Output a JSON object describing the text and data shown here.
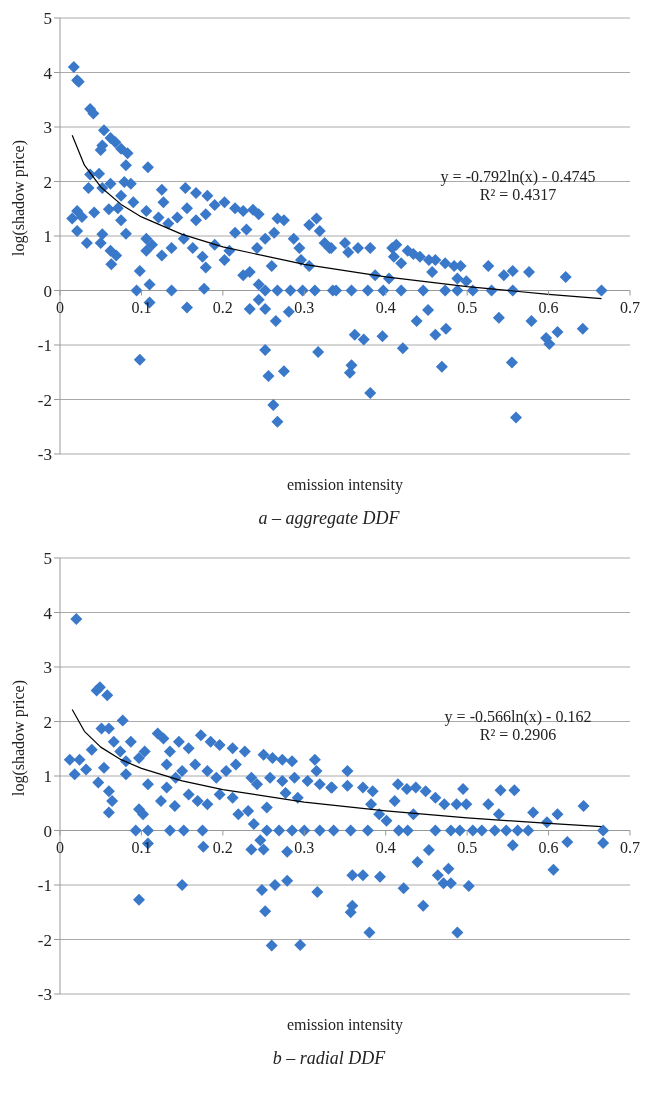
{
  "chart_data": [
    {
      "type": "scatter",
      "title": "a – aggregate DDF",
      "xlabel": "emission intensity",
      "ylabel": "log(shadow price)",
      "annotations": [
        "y = -0.792ln(x) - 0.4745",
        "R² = 0.4317"
      ],
      "xlim": [
        0,
        0.7
      ],
      "xticks": [
        0,
        0.1,
        0.2,
        0.3,
        0.4,
        0.5,
        0.6,
        0.7
      ],
      "ylim": [
        -3,
        5
      ],
      "yticks": [
        -3,
        -2,
        -1,
        0,
        1,
        2,
        3,
        4,
        5
      ],
      "grid": "y",
      "series": [
        {
          "type": "scatter",
          "marker": "diamond",
          "color": "#3a78c9",
          "x": [
            0.017,
            0.021,
            0.023,
            0.037,
            0.041,
            0.054,
            0.062,
            0.068,
            0.05,
            0.052,
            0.075,
            0.083,
            0.081,
            0.108,
            0.037,
            0.048,
            0.035,
            0.052,
            0.079,
            0.087,
            0.062,
            0.075,
            0.09,
            0.015,
            0.021,
            0.027,
            0.021,
            0.033,
            0.05,
            0.052,
            0.042,
            0.06,
            0.071,
            0.075,
            0.081,
            0.062,
            0.069,
            0.063,
            0.098,
            0.094,
            0.11,
            0.11,
            0.098,
            0.137,
            0.156,
            0.177,
            0.125,
            0.127,
            0.154,
            0.167,
            0.181,
            0.106,
            0.121,
            0.133,
            0.144,
            0.156,
            0.167,
            0.179,
            0.19,
            0.202,
            0.215,
            0.225,
            0.237,
            0.244,
            0.106,
            0.113,
            0.106,
            0.125,
            0.137,
            0.152,
            0.163,
            0.175,
            0.179,
            0.19,
            0.202,
            0.208,
            0.215,
            0.229,
            0.225,
            0.233,
            0.242,
            0.252,
            0.263,
            0.267,
            0.275,
            0.287,
            0.294,
            0.296,
            0.306,
            0.306,
            0.315,
            0.319,
            0.325,
            0.333,
            0.244,
            0.252,
            0.267,
            0.283,
            0.298,
            0.313,
            0.335,
            0.233,
            0.252,
            0.265,
            0.281,
            0.244,
            0.252,
            0.256,
            0.275,
            0.262,
            0.267,
            0.317,
            0.26,
            0.331,
            0.35,
            0.354,
            0.366,
            0.381,
            0.387,
            0.408,
            0.413,
            0.41,
            0.427,
            0.434,
            0.442,
            0.453,
            0.461,
            0.473,
            0.484,
            0.492,
            0.488,
            0.499,
            0.419,
            0.404,
            0.457,
            0.526,
            0.545,
            0.556,
            0.576,
            0.621,
            0.665,
            0.339,
            0.358,
            0.378,
            0.397,
            0.419,
            0.446,
            0.473,
            0.488,
            0.507,
            0.53,
            0.556,
            0.362,
            0.373,
            0.396,
            0.421,
            0.438,
            0.452,
            0.461,
            0.474,
            0.469,
            0.358,
            0.356,
            0.381,
            0.539,
            0.555,
            0.56,
            0.579,
            0.597,
            0.601,
            0.611,
            0.642
          ],
          "values": [
            4.1,
            3.86,
            3.83,
            3.33,
            3.25,
            2.94,
            2.8,
            2.72,
            2.58,
            2.66,
            2.6,
            2.52,
            2.3,
            2.26,
            2.13,
            2.14,
            1.88,
            1.88,
            1.99,
            1.96,
            1.96,
            1.74,
            1.62,
            1.32,
            1.46,
            1.35,
            1.09,
            0.87,
            0.87,
            1.03,
            1.43,
            1.49,
            1.51,
            1.29,
            1.04,
            0.73,
            0.64,
            0.48,
            0.36,
            0,
            0.11,
            -0.22,
            -1.27,
            0,
            -0.31,
            0.03,
            1.85,
            1.62,
            1.88,
            1.79,
            1.74,
            1.46,
            1.34,
            1.23,
            1.34,
            1.51,
            1.29,
            1.4,
            1.57,
            1.62,
            1.51,
            1.46,
            1.48,
            1.4,
            0.95,
            0.84,
            0.73,
            0.64,
            0.78,
            0.95,
            0.78,
            0.62,
            0.42,
            0.84,
            0.56,
            0.73,
            1.06,
            1.12,
            0.28,
            0.34,
            0.78,
            0.95,
            1.06,
            1.32,
            1.29,
            0.95,
            0.78,
            0.56,
            0.45,
            1.2,
            1.32,
            1.09,
            0.87,
            0.78,
            0.11,
            0,
            0,
            0,
            0,
            0,
            0,
            -0.34,
            -0.34,
            -0.56,
            -0.39,
            -0.17,
            -1.09,
            -1.57,
            -1.48,
            -2.1,
            -2.41,
            -1.13,
            0.45,
            0.78,
            0.87,
            0.7,
            0.78,
            0.78,
            0.28,
            0.78,
            0.84,
            0.62,
            0.73,
            0.67,
            0.62,
            0.56,
            0.56,
            0.5,
            0.45,
            0.45,
            0.22,
            0.17,
            0.5,
            0.22,
            0.34,
            0.45,
            0.28,
            0.36,
            0.34,
            0.25,
            0,
            0,
            0,
            0,
            0,
            0,
            0,
            0,
            0,
            0,
            0,
            0,
            -0.81,
            -0.9,
            -0.84,
            -1.06,
            -0.56,
            -0.36,
            -0.81,
            -0.7,
            -1.4,
            -1.37,
            -1.51,
            -1.88,
            -0.5,
            -1.32,
            -2.33,
            -0.56,
            -0.87,
            -0.98,
            -0.76,
            -0.7
          ]
        },
        {
          "type": "line",
          "color": "#000000",
          "x": [
            0.015,
            0.03,
            0.05,
            0.075,
            0.1,
            0.15,
            0.2,
            0.3,
            0.4,
            0.5,
            0.6,
            0.665
          ],
          "values": [
            2.85,
            2.3,
            1.9,
            1.58,
            1.35,
            1.03,
            0.8,
            0.48,
            0.25,
            0.07,
            -0.07,
            -0.15
          ]
        }
      ]
    },
    {
      "type": "scatter",
      "title": "b – radial DDF",
      "xlabel": "emission intensity",
      "ylabel": "log(shadow price)",
      "annotations": [
        "y = -0.566ln(x) - 0.162",
        "R² = 0.2906"
      ],
      "xlim": [
        0,
        0.7
      ],
      "xticks": [
        0,
        0.1,
        0.2,
        0.3,
        0.4,
        0.5,
        0.6,
        0.7
      ],
      "ylim": [
        -3,
        5
      ],
      "yticks": [
        -3,
        -2,
        -1,
        0,
        1,
        2,
        3,
        4,
        5
      ],
      "grid": "y",
      "series": [
        {
          "type": "scatter",
          "marker": "diamond",
          "color": "#3a78c9",
          "x": [
            0.02,
            0.045,
            0.049,
            0.058,
            0.077,
            0.051,
            0.06,
            0.012,
            0.018,
            0.024,
            0.032,
            0.039,
            0.047,
            0.054,
            0.06,
            0.064,
            0.06,
            0.066,
            0.074,
            0.081,
            0.087,
            0.081,
            0.097,
            0.104,
            0.108,
            0.124,
            0.097,
            0.102,
            0.093,
            0.108,
            0.108,
            0.097,
            0.135,
            0.152,
            0.175,
            0.141,
            0.15,
            0.176,
            0.12,
            0.127,
            0.135,
            0.146,
            0.158,
            0.173,
            0.185,
            0.196,
            0.212,
            0.227,
            0.131,
            0.142,
            0.131,
            0.158,
            0.169,
            0.181,
            0.15,
            0.166,
            0.181,
            0.192,
            0.204,
            0.216,
            0.196,
            0.212,
            0.219,
            0.231,
            0.235,
            0.25,
            0.261,
            0.273,
            0.285,
            0.313,
            0.315,
            0.242,
            0.258,
            0.273,
            0.288,
            0.304,
            0.319,
            0.333,
            0.277,
            0.292,
            0.254,
            0.238,
            0.254,
            0.269,
            0.285,
            0.3,
            0.319,
            0.336,
            0.235,
            0.25,
            0.246,
            0.279,
            0.248,
            0.264,
            0.279,
            0.252,
            0.316,
            0.26,
            0.295,
            0.334,
            0.353,
            0.353,
            0.372,
            0.384,
            0.382,
            0.392,
            0.401,
            0.415,
            0.426,
            0.437,
            0.411,
            0.434,
            0.449,
            0.461,
            0.472,
            0.487,
            0.495,
            0.499,
            0.526,
            0.539,
            0.541,
            0.558,
            0.581,
            0.598,
            0.611,
            0.643,
            0.667,
            0.667,
            0.357,
            0.378,
            0.416,
            0.427,
            0.461,
            0.48,
            0.491,
            0.507,
            0.518,
            0.534,
            0.548,
            0.562,
            0.575,
            0.556,
            0.623,
            0.606,
            0.453,
            0.439,
            0.464,
            0.477,
            0.471,
            0.48,
            0.502,
            0.359,
            0.372,
            0.393,
            0.422,
            0.446,
            0.359,
            0.357,
            0.38,
            0.488
          ],
          "values": [
            3.88,
            2.57,
            2.63,
            2.48,
            2.02,
            1.87,
            1.87,
            1.3,
            1.03,
            1.3,
            1.12,
            1.48,
            0.88,
            1.15,
            0.72,
            0.54,
            0.33,
            1.63,
            1.45,
            1.27,
            1.63,
            1.03,
            1.33,
            1.45,
            0.85,
            0.54,
            0.39,
            0.3,
            0,
            0,
            -0.24,
            -1.27,
            0,
            0,
            0,
            0.45,
            -1,
            -0.3,
            1.78,
            1.69,
            1.45,
            1.63,
            1.51,
            1.75,
            1.63,
            1.57,
            1.51,
            1.45,
            1.21,
            0.97,
            0.79,
            0.66,
            0.54,
            0.48,
            1.09,
            1.21,
            1.09,
            0.97,
            1.09,
            1.21,
            0.66,
            0.6,
            0.3,
            0.36,
            0.97,
            1.39,
            1.33,
            1.3,
            1.27,
            1.3,
            1.09,
            0.85,
            0.97,
            0.91,
            0.97,
            0.91,
            0.85,
            0.79,
            0.69,
            0.6,
            0.42,
            0.12,
            0,
            0,
            0,
            0,
            0,
            0,
            -0.35,
            -0.35,
            -0.18,
            -0.39,
            -1.09,
            -1,
            -0.92,
            -1.48,
            -1.13,
            -2.11,
            -2.1,
            0.79,
            1.09,
            0.82,
            0.79,
            0.72,
            0.48,
            0.3,
            0.18,
            0.85,
            0.76,
            0.79,
            0.54,
            0.3,
            0.72,
            0.6,
            0.48,
            0.48,
            0.76,
            0.48,
            0.48,
            0.3,
            0.74,
            0.74,
            0.33,
            0.15,
            0.3,
            0.45,
            0,
            -0.23,
            0,
            0,
            0,
            0,
            0,
            0,
            0,
            0,
            0,
            0,
            0,
            0,
            0,
            -0.27,
            -0.21,
            -0.72,
            -0.36,
            -0.58,
            -0.82,
            -0.7,
            -0.97,
            -0.97,
            -1.02,
            -0.82,
            -0.82,
            -0.85,
            -1.06,
            -1.38,
            -1.38,
            -1.5,
            -1.87,
            -1.87
          ]
        },
        {
          "type": "line",
          "color": "#000000",
          "x": [
            0.015,
            0.03,
            0.05,
            0.075,
            0.1,
            0.15,
            0.2,
            0.3,
            0.4,
            0.5,
            0.6,
            0.665
          ],
          "values": [
            2.22,
            1.82,
            1.53,
            1.3,
            1.14,
            0.91,
            0.75,
            0.52,
            0.36,
            0.23,
            0.13,
            0.07
          ]
        }
      ]
    }
  ]
}
